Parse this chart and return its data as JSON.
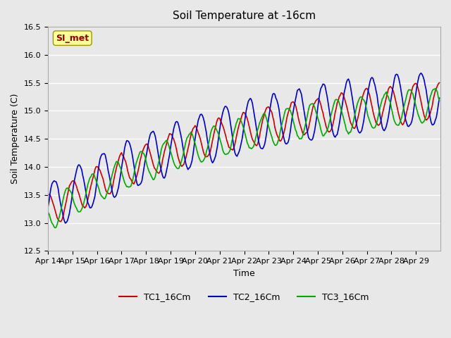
{
  "title": "Soil Temperature at -16cm",
  "xlabel": "Time",
  "ylabel": "Soil Temperature (C)",
  "ylim": [
    12.5,
    16.5
  ],
  "background_color": "#e8e8e8",
  "plot_bg_color": "#e8e8e8",
  "grid_color": "white",
  "legend_label": "SI_met",
  "legend_box_color": "#ffff99",
  "legend_box_edge": "#999900",
  "legend_text_color": "#990000",
  "series_colors": [
    "#cc0000",
    "#0000cc",
    "#00aa00"
  ],
  "series_labels": [
    "TC1_16Cm",
    "TC2_16Cm",
    "TC3_16Cm"
  ],
  "xtick_labels": [
    "Apr 14",
    "Apr 15",
    "Apr 16",
    "Apr 17",
    "Apr 18",
    "Apr 19",
    "Apr 20",
    "Apr 21",
    "Apr 22",
    "Apr 23",
    "Apr 24",
    "Apr 25",
    "Apr 26",
    "Apr 27",
    "Apr 28",
    "Apr 29"
  ],
  "n_days": 16
}
